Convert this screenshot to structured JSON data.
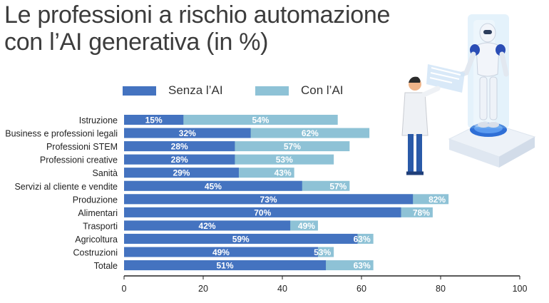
{
  "title_lines": [
    "Le professioni a rischio automazione",
    "con l’AI generativa (in %)"
  ],
  "colors": {
    "senza": "#4473c0",
    "con": "#8ec2d6",
    "label": "#ffffff",
    "axis": "#222222"
  },
  "illustration": "robot-and-scientist",
  "chart_data": {
    "type": "bar",
    "orientation": "horizontal",
    "title": "Le professioni a rischio automazione con l’AI generativa (in %)",
    "categories": [
      "Istruzione",
      "Business e professioni legali",
      "Professioni STEM",
      "Professioni creative",
      "Sanità",
      "Servizi al cliente e vendite",
      "Produzione",
      "Alimentari",
      "Trasporti",
      "Agricoltura",
      "Costruzioni",
      "Totale"
    ],
    "series": [
      {
        "name": "Senza l’AI",
        "values": [
          15,
          32,
          28,
          28,
          29,
          45,
          73,
          70,
          42,
          59,
          49,
          51
        ]
      },
      {
        "name": "Con l’AI",
        "values": [
          54,
          62,
          57,
          53,
          43,
          57,
          82,
          78,
          49,
          63,
          53,
          63
        ]
      }
    ],
    "value_suffix": "%",
    "xlim": [
      0,
      100
    ],
    "xticks": [
      0,
      20,
      40,
      60,
      80,
      100
    ],
    "grid": false,
    "legend_position": "top"
  }
}
